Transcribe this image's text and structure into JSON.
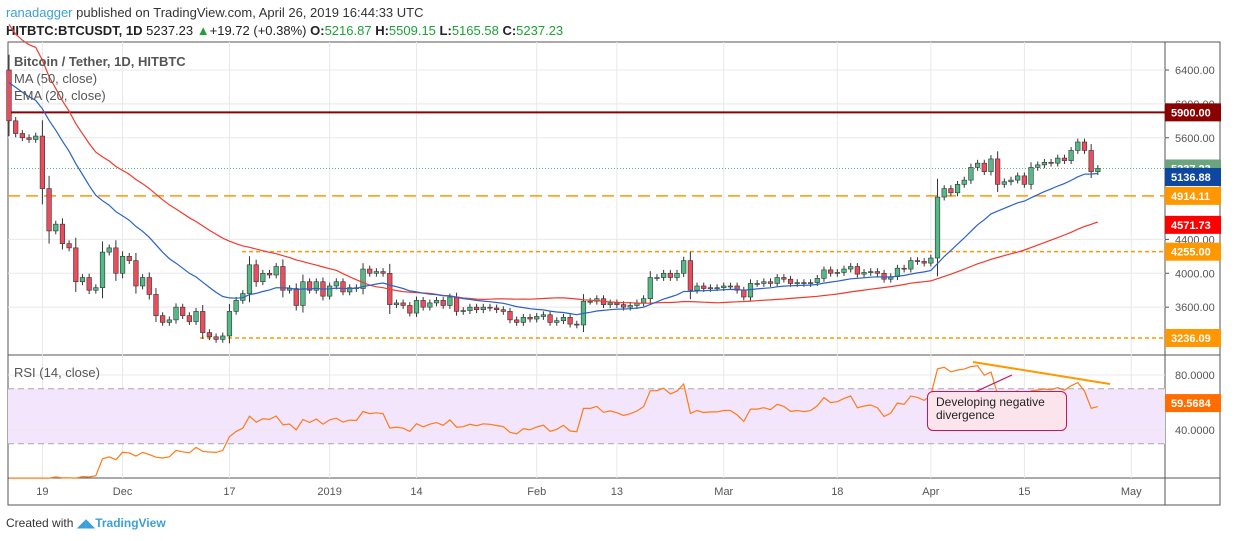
{
  "header": {
    "user": "ranadagger",
    "published": "published on TradingView.com, April 26, 2019 16:44:33 UTC",
    "symbol": "HITBTC:BTCUSDT, 1D",
    "last": "5237.23",
    "change": "+19.72 (+0.38%)",
    "o_label": "O:",
    "o": "5216.87",
    "h_label": "H:",
    "h": "5509.15",
    "l_label": "L:",
    "l": "5165.58",
    "c_label": "C:",
    "c": "5237.23"
  },
  "legend": {
    "title": "Bitcoin / Tether, 1D, HITBTC",
    "ma": "MA (50, close)",
    "ema": "EMA (20, close)",
    "rsi": "RSI (14, close)"
  },
  "annotation": "Developing negative divergence",
  "footer": {
    "created": "Created with",
    "brand": "TradingView"
  },
  "colors": {
    "up": "#53b987",
    "down": "#eb4d5c",
    "ma": "#f23a2e",
    "ema": "#2a62c9",
    "resistance": "#8b0000",
    "support": "#ff9800",
    "rsi": "#ff7b1a",
    "rsi_band": "#f3e5fb"
  },
  "chart_data": {
    "type": "candlestick",
    "start_date": "2018-11-14",
    "closes": [
      5800,
      5650,
      5600,
      5580,
      5620,
      5000,
      4500,
      4580,
      4350,
      4300,
      3900,
      3950,
      3800,
      3830,
      4250,
      4300,
      4000,
      4200,
      4150,
      3850,
      3950,
      3750,
      3500,
      3420,
      3450,
      3600,
      3500,
      3430,
      3550,
      3300,
      3250,
      3220,
      3260,
      3550,
      3680,
      3760,
      4100,
      3900,
      4000,
      3980,
      4080,
      3800,
      3820,
      3620,
      3900,
      3800,
      3900,
      3730,
      3850,
      3900,
      3780,
      3830,
      3820,
      4050,
      4000,
      4020,
      4000,
      3630,
      3650,
      3620,
      3530,
      3680,
      3600,
      3650,
      3680,
      3620,
      3720,
      3550,
      3560,
      3600,
      3570,
      3600,
      3590,
      3570,
      3550,
      3450,
      3420,
      3480,
      3460,
      3490,
      3510,
      3420,
      3440,
      3480,
      3400,
      3390,
      3670,
      3670,
      3700,
      3630,
      3650,
      3630,
      3600,
      3620,
      3650,
      3700,
      3950,
      3950,
      4000,
      3950,
      4000,
      4150,
      3800,
      3850,
      3820,
      3830,
      3830,
      3850,
      3850,
      3800,
      3720,
      3880,
      3880,
      3900,
      3880,
      3950,
      3930,
      3880,
      3890,
      3880,
      3890,
      3940,
      4040,
      4000,
      4010,
      4050,
      4080,
      3990,
      4010,
      4020,
      4000,
      3930,
      3960,
      4060,
      4050,
      4150,
      4140,
      4120,
      4180,
      4900,
      5000,
      4950,
      5050,
      5100,
      5250,
      5300,
      5200,
      5350,
      5050,
      5080,
      5100,
      5150,
      5050,
      5250,
      5280,
      5310,
      5300,
      5360,
      5330,
      5450,
      5550,
      5450,
      5200,
      5237.23
    ],
    "first_open": 6400,
    "price_ticks": [
      6400,
      6000,
      5600,
      4400,
      4000,
      3600
    ],
    "price_tick_labels": [
      "6400.00",
      "6000.00",
      "5600.00",
      "4400.00",
      "4000.00",
      "3600.00"
    ],
    "rsi_ticks": [
      "80.0000",
      "40.0000"
    ],
    "rsi_band": [
      30,
      70
    ],
    "x_labels": [
      "19",
      "Dec",
      "17",
      "2019",
      "14",
      "Feb",
      "13",
      "Mar",
      "18",
      "Apr",
      "15",
      "May"
    ],
    "x_label_dates": [
      "2018-11-19",
      "2018-12-01",
      "2018-12-17",
      "2019-01-01",
      "2019-01-14",
      "2019-02-01",
      "2019-02-13",
      "2019-03-01",
      "2019-03-18",
      "2019-04-01",
      "2019-04-15",
      "2019-05-01"
    ],
    "levels": [
      {
        "label": "5900.00",
        "value": 5900,
        "color": "#8b0000",
        "style": "solid"
      },
      {
        "label": "4914.11",
        "value": 4914.11,
        "color": "#ff9800",
        "style": "dashed"
      },
      {
        "label": "4255.00",
        "value": 4255,
        "color": "#ff9800",
        "style": "dotted"
      },
      {
        "label": "3236.09",
        "value": 3236.09,
        "color": "#ff9800",
        "style": "dotted"
      }
    ],
    "badges": [
      {
        "label": "5237.23",
        "value": 5237.23,
        "color": "#6aa57f"
      },
      {
        "label": "5136.88",
        "value": 5136.88,
        "color": "#0d47a1"
      },
      {
        "label": "4571.73",
        "value": 4571.73,
        "color": "#ff0000"
      }
    ],
    "rsi_value": "59.5684"
  }
}
